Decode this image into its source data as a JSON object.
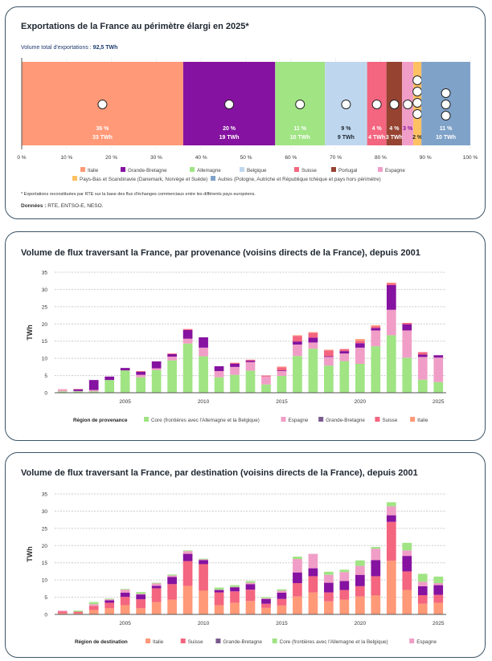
{
  "chart_data": [
    {
      "type": "bar",
      "orientation": "horizontal-stacked-100",
      "title": "Exportations de la France au périmètre élargi en 2025*",
      "subtitle_label": "Volume total d'exportations : ",
      "subtitle_value": "92,5 TWh",
      "xlim": [
        0,
        100
      ],
      "xticks": [
        "0 %",
        "10 %",
        "20 %",
        "30 %",
        "40 %",
        "50 %",
        "60 %",
        "70 %",
        "80 %",
        "90 %",
        "100 %"
      ],
      "segments": [
        {
          "name": "Italie",
          "share": 36,
          "pct_label": "36 %",
          "twh_label": "33 TWh",
          "color": "#FF9977",
          "flags": [
            "italy-flag-icon"
          ],
          "text": "#ffffff"
        },
        {
          "name": "Grande-Bretagne",
          "share": 20.5,
          "pct_label": "20 %",
          "twh_label": "19 TWh",
          "color": "#8512A0",
          "flags": [
            "uk-flag-icon"
          ],
          "text": "#ffffff"
        },
        {
          "name": "Allemagne",
          "share": 11.1,
          "pct_label": "11 %",
          "twh_label": "10 TWh",
          "color": "#A0E484",
          "flags": [
            "germany-flag-icon"
          ],
          "text": "#ffffff"
        },
        {
          "name": "Belgique",
          "share": 9.4,
          "pct_label": "9 %",
          "twh_label": "9 TWh",
          "color": "#BFD7EE",
          "flags": [
            "belgium-flag-icon"
          ],
          "text": "#1d2630"
        },
        {
          "name": "Suisse",
          "share": 4.3,
          "pct_label": "4 %",
          "twh_label": "4 TWh",
          "color": "#F4657F",
          "flags": [
            "switzerland-flag-icon"
          ],
          "text": "#ffffff"
        },
        {
          "name": "Portugal",
          "share": 3.5,
          "pct_label": "4 %",
          "twh_label": "3 TWh",
          "color": "#964332",
          "flags": [
            "portugal-flag-icon"
          ],
          "text": "#ffffff"
        },
        {
          "name": "Espagne",
          "share": 2.5,
          "pct_label": "3 %",
          "twh_label": "",
          "color": "#F09EC7",
          "flags": [
            "spain-flag-icon"
          ],
          "text": "#8512A0"
        },
        {
          "name": "Pays-Bas et Scandinavie (Danemark, Norvège et Suède)",
          "share": 1.8,
          "pct_label": "",
          "twh_label": "2 %",
          "color": "#FFC061",
          "flags": [
            "sweden-flag-icon",
            "denmark-flag-icon",
            "norway-flag-icon",
            "netherlands-flag-icon"
          ],
          "text": "#1d2630"
        },
        {
          "name": "Autres (Pologne, Autriche et République tchèque et pays hors périmètre)",
          "share": 10.9,
          "pct_label": "11 %",
          "twh_label": "10 TWh",
          "color": "#7FA2C9",
          "flags": [
            "poland-flag-icon",
            "austria-flag-icon",
            "czechia-flag-icon"
          ],
          "text": "#ffffff"
        }
      ],
      "footnote": "* Exportations reconstituées par RTE sur la base des flux d'échanges commerciaux entre les différents pays européens.",
      "source_label": "Données : ",
      "source_value": "RTE, ENTSO-E, NESO."
    },
    {
      "type": "bar",
      "stacked": true,
      "title": "Volume de flux traversant la France, par provenance (voisins directs de la France), depuis 2001",
      "ylabel": "TWh",
      "ylim": [
        0,
        35
      ],
      "yticks": [
        0,
        5,
        10,
        15,
        20,
        25,
        30,
        35
      ],
      "xticks": [
        "2005",
        "2010",
        "2015",
        "2020",
        "2025"
      ],
      "grid": true,
      "legend_title": "Région de provenance",
      "legend": "bottom",
      "categories": [
        2001,
        2002,
        2003,
        2004,
        2005,
        2006,
        2007,
        2008,
        2009,
        2010,
        2011,
        2012,
        2013,
        2014,
        2015,
        2016,
        2017,
        2018,
        2019,
        2020,
        2021,
        2022,
        2023,
        2024,
        2025
      ],
      "series": [
        {
          "name": "Core (frontières avec l'Allemagne et la Belgique)",
          "color": "#A0E484",
          "values": [
            0.4,
            0.4,
            0.4,
            3.7,
            6.5,
            4.5,
            6.6,
            9.4,
            14.3,
            10.6,
            4.5,
            5.2,
            6.4,
            2.4,
            4.9,
            10.7,
            12.8,
            7.9,
            9.2,
            8.4,
            13.5,
            16.7,
            10.2,
            3.8,
            3.1
          ]
        },
        {
          "name": "Espagne",
          "color": "#F09EC7",
          "values": [
            0.5,
            0.1,
            0.4,
            0,
            0,
            0.7,
            0.5,
            1.1,
            1.4,
            2.5,
            1.8,
            2.3,
            2.5,
            2.3,
            1.4,
            3.3,
            1.8,
            2.5,
            2.2,
            4.7,
            4.6,
            7.4,
            7.9,
            6.6,
            7.1
          ]
        },
        {
          "name": "Grande-Bretagne",
          "color": "#8512A0",
          "legend_color": "#7B5B8E",
          "values": [
            0,
            0.5,
            2.9,
            1.0,
            0.7,
            0.9,
            2.0,
            0.7,
            2.5,
            3.0,
            1.4,
            0.9,
            0.4,
            0,
            0.2,
            0.9,
            1.4,
            0.2,
            0.7,
            1.3,
            0.7,
            7.2,
            1.8,
            0.7,
            0.7
          ]
        },
        {
          "name": "Suisse",
          "color": "#F4657F",
          "values": [
            0.1,
            0.1,
            0,
            0,
            0,
            0.2,
            0,
            0.2,
            0.3,
            0,
            0,
            0.3,
            0.3,
            0.3,
            0.9,
            1.6,
            1.4,
            1.7,
            0.6,
            0.7,
            0.5,
            0.5,
            0.4,
            0.7,
            0
          ]
        },
        {
          "name": "Italie",
          "color": "#FF9977",
          "values": [
            0,
            0,
            0,
            0,
            0,
            0,
            0,
            0,
            0,
            0,
            0,
            0,
            0,
            0,
            0.2,
            0.2,
            0.2,
            0.2,
            0,
            0.5,
            0.3,
            0.2,
            0,
            0,
            0
          ]
        }
      ]
    },
    {
      "type": "bar",
      "stacked": true,
      "title": "Volume de flux traversant la France, par destination (voisins directs de la France), depuis 2001",
      "ylabel": "TWh",
      "ylim": [
        0,
        35
      ],
      "yticks": [
        0,
        5,
        10,
        15,
        20,
        25,
        30,
        35
      ],
      "xticks": [
        "2005",
        "2010",
        "2015",
        "2020",
        "2025"
      ],
      "grid": true,
      "legend_title": "Région de destination",
      "legend": "bottom",
      "categories": [
        2001,
        2002,
        2003,
        2004,
        2005,
        2006,
        2007,
        2008,
        2009,
        2010,
        2011,
        2012,
        2013,
        2014,
        2015,
        2016,
        2017,
        2018,
        2019,
        2020,
        2021,
        2022,
        2023,
        2024,
        2025
      ],
      "series": [
        {
          "name": "Italie",
          "color": "#FF9977",
          "values": [
            0.3,
            0.3,
            1.3,
            1.8,
            2.7,
            1.8,
            3.6,
            4.3,
            8.3,
            6.9,
            2.7,
            3.4,
            3.9,
            1.9,
            2.6,
            5.2,
            6.4,
            3.8,
            4.3,
            5.2,
            5.5,
            15.6,
            7.1,
            3.1,
            3.4
          ]
        },
        {
          "name": "Suisse",
          "color": "#F4657F",
          "values": [
            0.6,
            0.5,
            1.2,
            1.6,
            2.4,
            2.6,
            4.0,
            4.5,
            7.2,
            7.7,
            3.7,
            3.3,
            3.3,
            1.2,
            1.9,
            3.9,
            4.7,
            2.6,
            2.8,
            3.0,
            5.6,
            11.3,
            5.4,
            2.5,
            2.3
          ]
        },
        {
          "name": "Grande-Bretagne",
          "color": "#8512A0",
          "legend_color": "#7B5B8E",
          "values": [
            0,
            0,
            0,
            0.7,
            1.2,
            1.4,
            0.7,
            2.1,
            2.1,
            1.2,
            0.7,
            1.2,
            1.6,
            1.4,
            1.8,
            3.1,
            2.3,
            2.8,
            2.6,
            3.3,
            4.7,
            1.9,
            4.5,
            2.6,
            2.8
          ]
        },
        {
          "name": "Core (frontières avec l'Allemagne et la Belgique)",
          "color": "#A0E484",
          "values": [
            0,
            0.3,
            0.6,
            0.2,
            0.2,
            0.5,
            0.2,
            0.3,
            0.2,
            0.2,
            0.6,
            0.5,
            0.5,
            0.3,
            0.4,
            0.7,
            0,
            0.9,
            0.7,
            1.6,
            0.5,
            1.2,
            2.2,
            2.3,
            1.9
          ]
        },
        {
          "name": "Espagne",
          "color": "#F09EC7",
          "values": [
            0.2,
            0,
            0.5,
            0.3,
            0.9,
            0.2,
            0.7,
            0.4,
            0.8,
            0.2,
            0.1,
            0.1,
            0.4,
            0.2,
            0.6,
            3.9,
            4.2,
            2.3,
            2.6,
            2.6,
            3.3,
            2.6,
            1.6,
            1.3,
            0.6
          ]
        }
      ],
      "stack_order": [
        "Italie",
        "Suisse",
        "Grande-Bretagne",
        "Espagne",
        "Core (frontières avec l'Allemagne et la Belgique)"
      ]
    }
  ]
}
